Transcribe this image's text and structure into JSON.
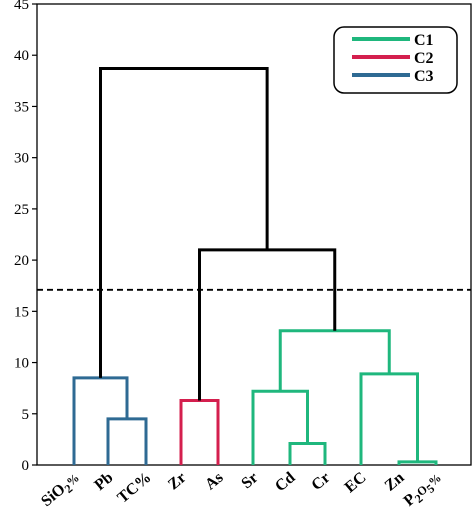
{
  "chart_data": {
    "type": "dendrogram",
    "title": "",
    "xlabel": "",
    "ylabel": "",
    "ylim": [
      0,
      45
    ],
    "yticks": [
      0,
      5,
      10,
      15,
      20,
      25,
      30,
      35,
      40,
      45
    ],
    "ytick_labels": [
      "0",
      "5",
      "10",
      "15",
      "20",
      "25",
      "30",
      "35",
      "40",
      "45"
    ],
    "grid": false,
    "legend_placement": "top-right",
    "leaves": [
      {
        "main": "SiO",
        "sub": "2",
        "tail": "%"
      },
      {
        "main": "Pb",
        "sub": "",
        "tail": ""
      },
      {
        "main": "TC%",
        "sub": "",
        "tail": ""
      },
      {
        "main": "Zr",
        "sub": "",
        "tail": ""
      },
      {
        "main": "As",
        "sub": "",
        "tail": ""
      },
      {
        "main": "Sr",
        "sub": "",
        "tail": ""
      },
      {
        "main": "Cd",
        "sub": "",
        "tail": ""
      },
      {
        "main": "Cr",
        "sub": "",
        "tail": ""
      },
      {
        "main": "EC",
        "sub": "",
        "tail": ""
      },
      {
        "main": "Zn",
        "sub": "",
        "tail": ""
      },
      {
        "main": "P",
        "sub": "2",
        "tail": "O",
        "sub2": "5",
        "tail2": "%"
      }
    ],
    "clusters": [
      {
        "name": "C1",
        "color": "#1fb77d"
      },
      {
        "name": "C2",
        "color": "#d41f4e"
      },
      {
        "name": "C3",
        "color": "#2e6a93"
      }
    ],
    "merges": [
      {
        "left": "Pb",
        "right": "TC%",
        "height": 4.5,
        "color": "#2e6a93"
      },
      {
        "left": "SiO2%",
        "right": "Pb+TC%",
        "height": 8.5,
        "color": "#2e6a93"
      },
      {
        "left": "Zr",
        "right": "As",
        "height": 6.3,
        "color": "#d41f4e"
      },
      {
        "left": "Cd",
        "right": "Cr",
        "height": 2.1,
        "color": "#1fb77d"
      },
      {
        "left": "Sr",
        "right": "Cd+Cr",
        "height": 7.2,
        "color": "#1fb77d"
      },
      {
        "left": "Zn",
        "right": "P2O5%",
        "height": 0.3,
        "color": "#1fb77d"
      },
      {
        "left": "EC",
        "right": "Zn+P2O5%",
        "height": 8.9,
        "color": "#1fb77d"
      },
      {
        "left": "Sr..Cr",
        "right": "EC..P2O5%",
        "height": 13.1,
        "color": "#1fb77d"
      },
      {
        "left": "Zr+As",
        "right": "C1",
        "height": 21.0,
        "color": "#000000"
      },
      {
        "left": "C3",
        "right": "C2+C1",
        "height": 38.7,
        "color": "#000000"
      }
    ],
    "cut_line": {
      "value": 17.1,
      "style": "dashed"
    }
  }
}
